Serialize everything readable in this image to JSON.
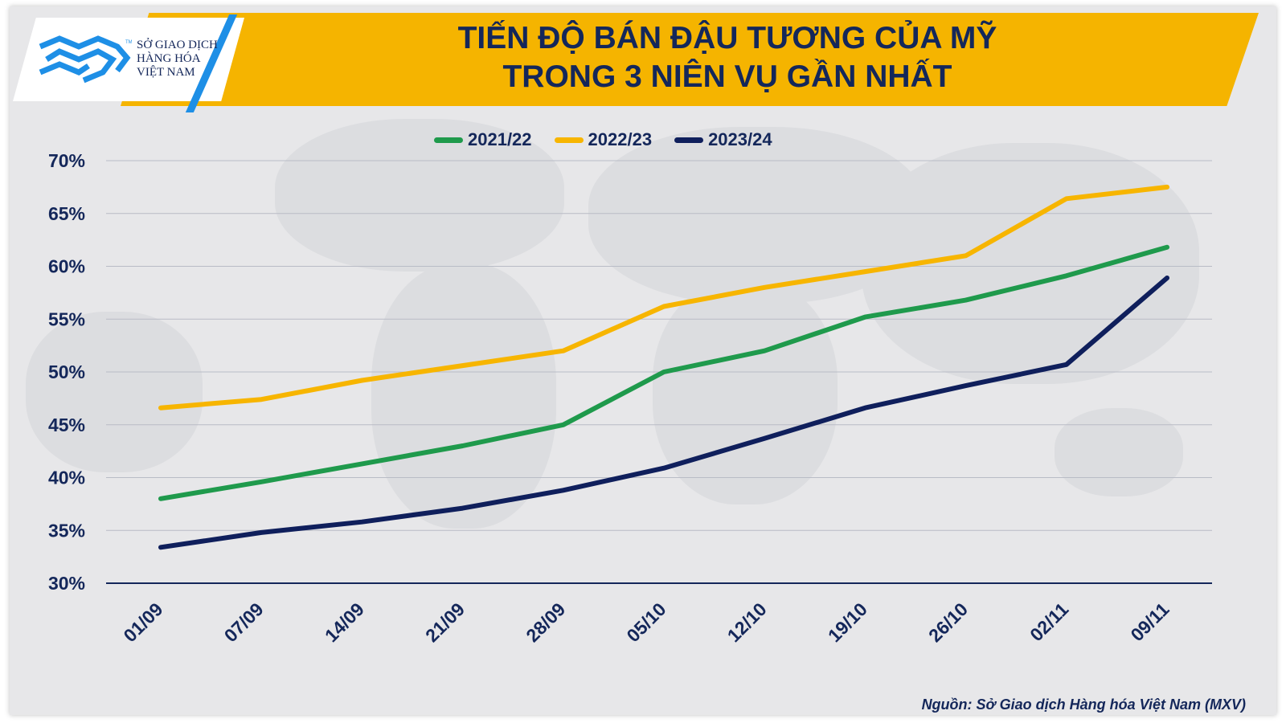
{
  "logo": {
    "line1": "SỞ GIAO DỊCH",
    "line2": "HÀNG HÓA",
    "line3": "VIỆT NAM",
    "tm": "TM"
  },
  "header": {
    "title_line1": "TIẾN ĐỘ BÁN ĐẬU TƯƠNG CỦA MỸ",
    "title_line2": "TRONG 3 NIÊN VỤ GẦN NHẤT"
  },
  "colors": {
    "banner": "#f5b400",
    "navy": "#14275a",
    "green": "#1f9a4c",
    "yellow": "#f7b500",
    "dark_navy": "#0f1f5c",
    "logo_blue": "#1e8fe6"
  },
  "chart_data": {
    "type": "line",
    "categories": [
      "01/09",
      "07/09",
      "14/09",
      "21/09",
      "28/09",
      "05/10",
      "12/10",
      "19/10",
      "26/10",
      "02/11",
      "09/11"
    ],
    "series": [
      {
        "name": "2021/22",
        "color": "#1f9a4c",
        "values": [
          38.0,
          39.6,
          41.3,
          43.0,
          45.0,
          50.0,
          52.0,
          55.2,
          56.8,
          59.1,
          61.8
        ]
      },
      {
        "name": "2022/23",
        "color": "#f7b500",
        "values": [
          46.6,
          47.4,
          49.2,
          50.6,
          52.0,
          56.2,
          58.0,
          59.5,
          61.0,
          66.4,
          67.5
        ]
      },
      {
        "name": "2023/24",
        "color": "#0f1f5c",
        "values": [
          33.4,
          34.8,
          35.8,
          37.1,
          38.8,
          40.9,
          43.7,
          46.6,
          48.7,
          50.7,
          58.9
        ]
      }
    ],
    "yticks": [
      "30%",
      "35%",
      "40%",
      "45%",
      "50%",
      "55%",
      "60%",
      "65%",
      "70%"
    ],
    "ylim": [
      30,
      70
    ],
    "grid": true,
    "legend": "top-center",
    "source": "Nguồn: Sở Giao dịch Hàng hóa Việt Nam (MXV)"
  }
}
